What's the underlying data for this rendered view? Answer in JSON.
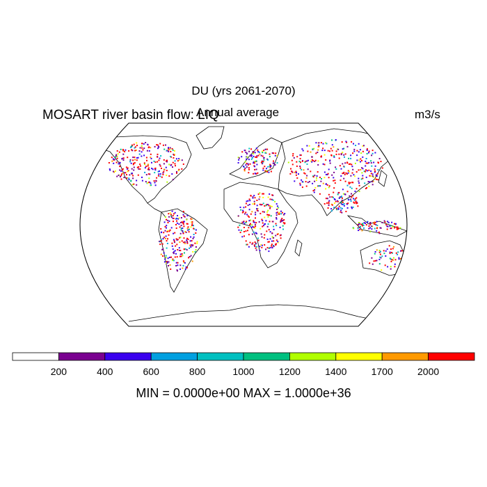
{
  "title": "DU (yrs 2061-2070)",
  "left_string": "MOSART river basin flow: LIQ",
  "center_string": "Annual average",
  "right_string": "m3/s",
  "colorbar": {
    "levels": [
      "200",
      "400",
      "600",
      "800",
      "1000",
      "1200",
      "1400",
      "1700",
      "2000"
    ],
    "colors": [
      "#ffffff",
      "#7a0090",
      "#3a00ee",
      "#00a0e0",
      "#00c0c0",
      "#00c080",
      "#b0ff00",
      "#ffff00",
      "#ff9a00",
      "#ff0000"
    ]
  },
  "stats": "MIN = 0.0000e+00 MAX = 1.0000e+36"
}
